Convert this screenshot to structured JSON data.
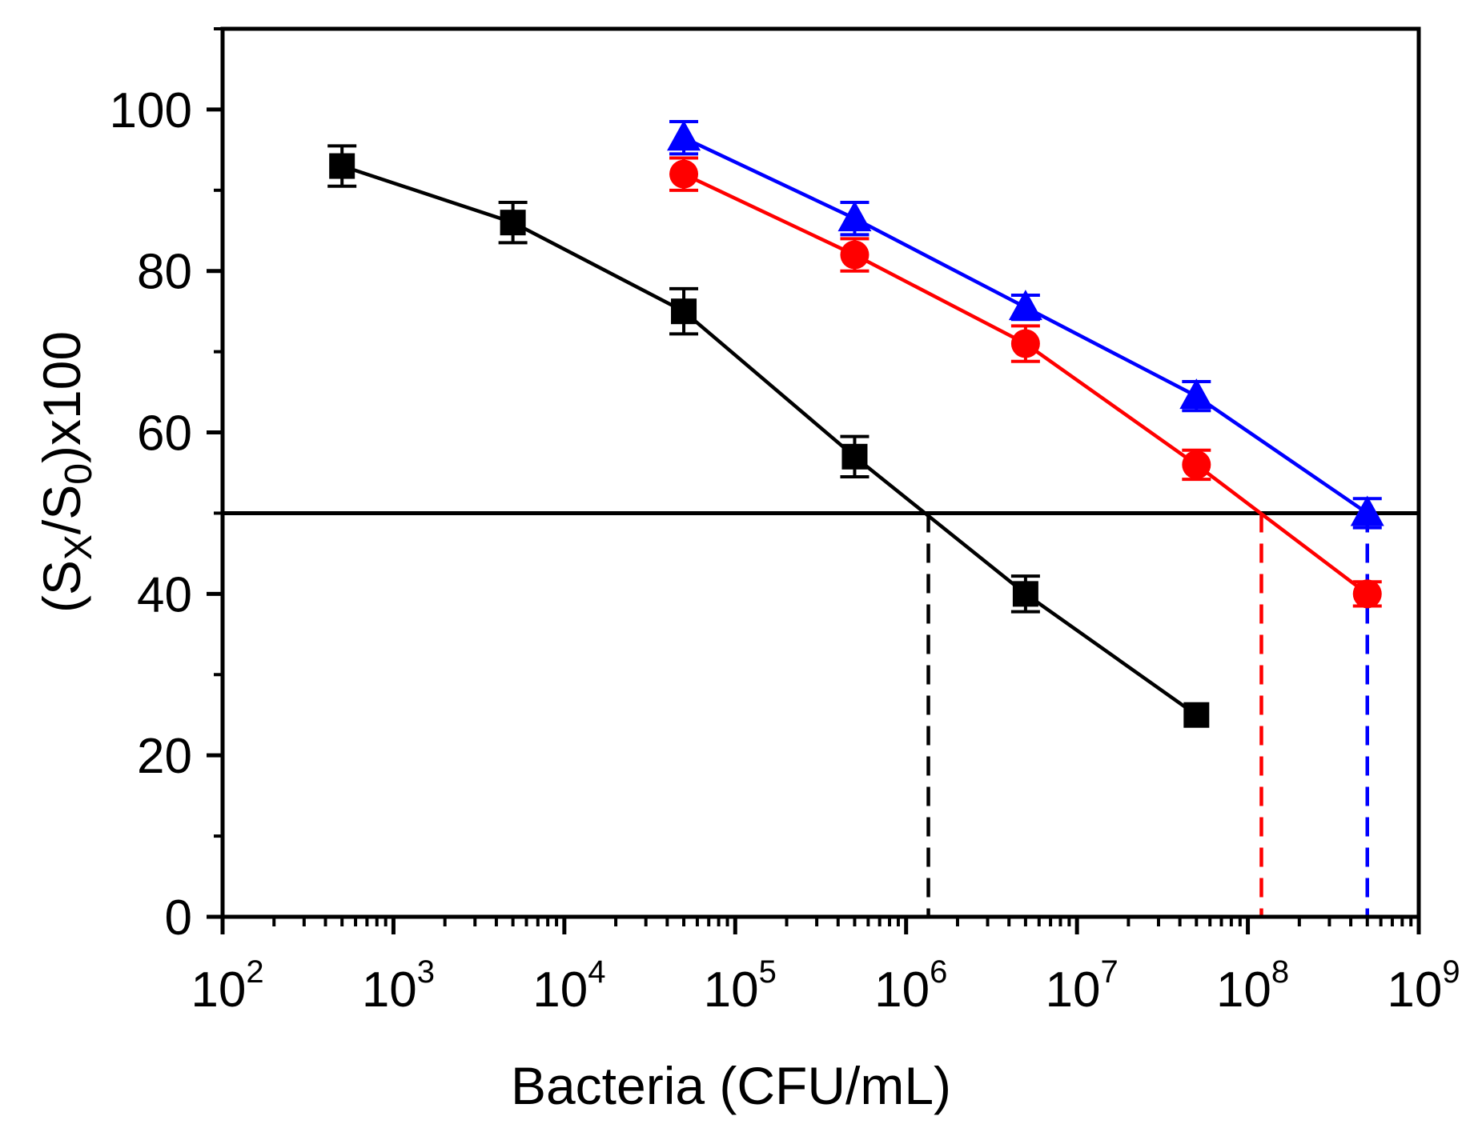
{
  "chart_data": {
    "type": "scatter",
    "title": "",
    "xlabel": "Bacteria (CFU/mL)",
    "ylabel": {
      "open": "(S",
      "sub1": "X",
      "mid": "/S",
      "sub2": "0",
      "close": ")x100"
    },
    "x_scale": "log",
    "xlim": [
      100,
      1000000000
    ],
    "ylim": [
      0,
      110
    ],
    "x_ticks": [
      {
        "base": "10",
        "exp": "2"
      },
      {
        "base": "10",
        "exp": "3"
      },
      {
        "base": "10",
        "exp": "4"
      },
      {
        "base": "10",
        "exp": "5"
      },
      {
        "base": "10",
        "exp": "6"
      },
      {
        "base": "10",
        "exp": "7"
      },
      {
        "base": "10",
        "exp": "8"
      },
      {
        "base": "10",
        "exp": "9"
      }
    ],
    "y_ticks": [
      0,
      20,
      40,
      60,
      80,
      100
    ],
    "threshold": 50,
    "series": [
      {
        "name": "black-squares",
        "color": "#000000",
        "marker": "square",
        "x": [
          500,
          5000,
          50000,
          500000,
          5000000,
          50000000
        ],
        "y": [
          93,
          86,
          75,
          57,
          40,
          25
        ],
        "err": [
          2.5,
          2.5,
          2.8,
          2.5,
          2.2,
          0
        ],
        "cutoff_x": 1350000
      },
      {
        "name": "red-circles",
        "color": "#ff0000",
        "marker": "circle",
        "x": [
          50000,
          500000,
          5000000,
          50000000,
          500000000
        ],
        "y": [
          92,
          82,
          71,
          56,
          40
        ],
        "err": [
          2,
          2,
          2.2,
          1.8,
          1.5
        ],
        "cutoff_x": 120000000
      },
      {
        "name": "blue-triangles",
        "color": "#0000ff",
        "marker": "triangle",
        "x": [
          50000,
          500000,
          5000000,
          50000000,
          500000000
        ],
        "y": [
          96.5,
          86.5,
          75.5,
          64.5,
          50
        ],
        "err": [
          2,
          2,
          1.5,
          1.8,
          1.8
        ],
        "cutoff_x": 500000000
      }
    ]
  }
}
